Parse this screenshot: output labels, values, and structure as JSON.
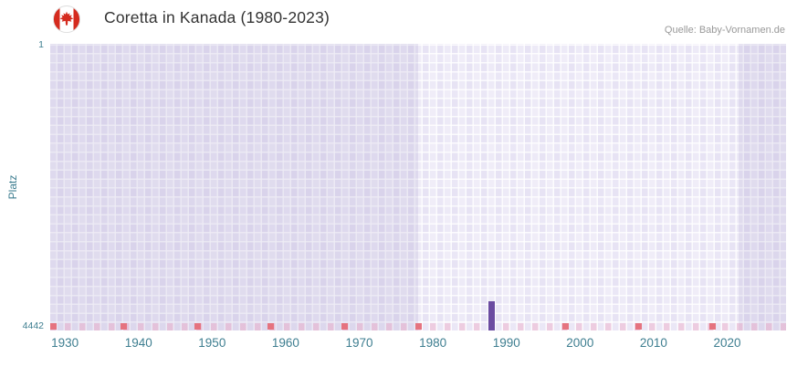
{
  "header": {
    "title": "Coretta in Kanada (1980-2023)",
    "flag_alt": "Kanada Flagge",
    "source": "Quelle: Baby-Vornamen.de"
  },
  "chart_data": {
    "type": "bar",
    "title": "Coretta in Kanada (1980-2023)",
    "xlabel": "",
    "ylabel": "Platz",
    "y_axis": {
      "min": 1,
      "max": 4442,
      "inverted": true,
      "tick_labels": [
        "1",
        "4442"
      ]
    },
    "x_axis": {
      "min": 1928,
      "max": 2028,
      "ticks": [
        1930,
        1940,
        1950,
        1960,
        1970,
        1980,
        1990,
        2000,
        2010,
        2020
      ]
    },
    "series": [
      {
        "name": "Coretta",
        "color": "#6b4ba1",
        "points": [
          {
            "year": 1988,
            "platz": 3990
          }
        ]
      }
    ],
    "annotations": {
      "highlight_bands_darker": [
        [
          1928,
          1978
        ],
        [
          2021.5,
          2028
        ]
      ],
      "bottom_axis_markers": {
        "color": "#e5737f",
        "years": [
          1928,
          1938,
          1948,
          1958,
          1968,
          1978,
          1998,
          2008,
          2018
        ]
      }
    },
    "grid": true,
    "legend": false,
    "colors": {
      "plot_bg": "#e7e3f4",
      "axis_text": "#3e7e90",
      "title_text": "#333333",
      "source_text": "#999999"
    }
  }
}
